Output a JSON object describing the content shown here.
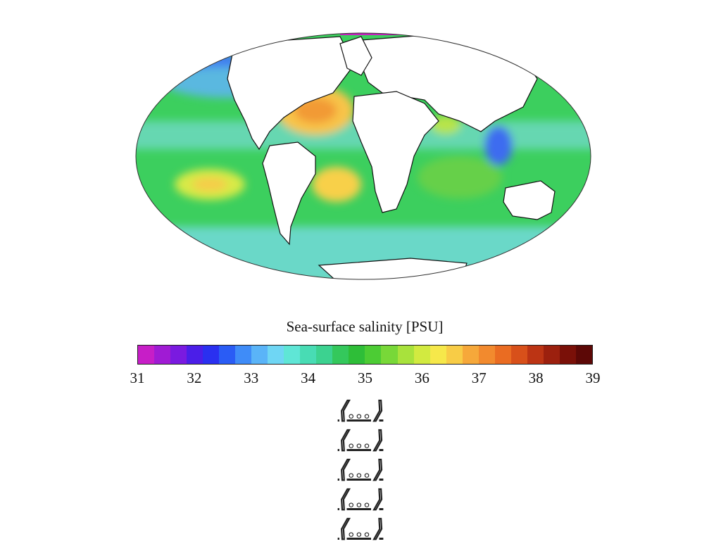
{
  "map": {
    "projection": "Mollweide",
    "variable": "sea-surface salinity",
    "colorbar_title": "Sea-surface salinity [PSU]",
    "colorbar_range": [
      31,
      39
    ],
    "colorbar_ticks": [
      "31",
      "32",
      "33",
      "34",
      "35",
      "36",
      "37",
      "38",
      "39"
    ],
    "colorbar_colors": [
      "#c71ec7",
      "#a01bd4",
      "#7a1ae0",
      "#4b1ee8",
      "#2a30f0",
      "#2a5cf5",
      "#3f8cf8",
      "#5ab4f8",
      "#6fd6f4",
      "#5fe6d6",
      "#48dcb4",
      "#3cd290",
      "#34c85c",
      "#2ebe38",
      "#4ccc34",
      "#78d838",
      "#a8e23c",
      "#d2ea40",
      "#f6e84a",
      "#f8cc46",
      "#f6a83a",
      "#f28a2e",
      "#ea6c22",
      "#d8501a",
      "#bc3414",
      "#9c200e",
      "#7a1008",
      "#5c0806"
    ]
  },
  "caption": {
    "lines": [
      "⟨…⟩",
      "⟨…⟩",
      "⟨…⟩",
      "⟨…⟩",
      "⟨…⟩"
    ]
  }
}
